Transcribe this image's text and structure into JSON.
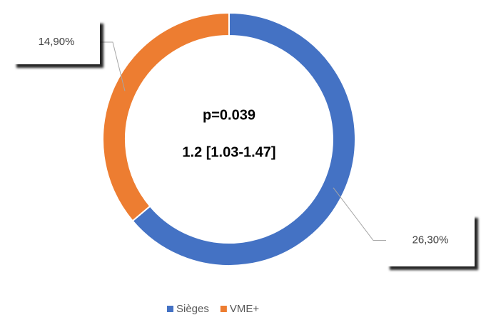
{
  "chart_data": {
    "type": "donut",
    "annotations": [
      "p=0.039",
      "1.2 [1.03-1.47]"
    ],
    "categories": [
      "Sièges",
      "VME+"
    ],
    "values": [
      26.3,
      14.9
    ],
    "value_labels": [
      "26,30%",
      "14,90%"
    ],
    "colors": [
      "#4472c4",
      "#ed7d31"
    ],
    "legend": "bottom"
  }
}
